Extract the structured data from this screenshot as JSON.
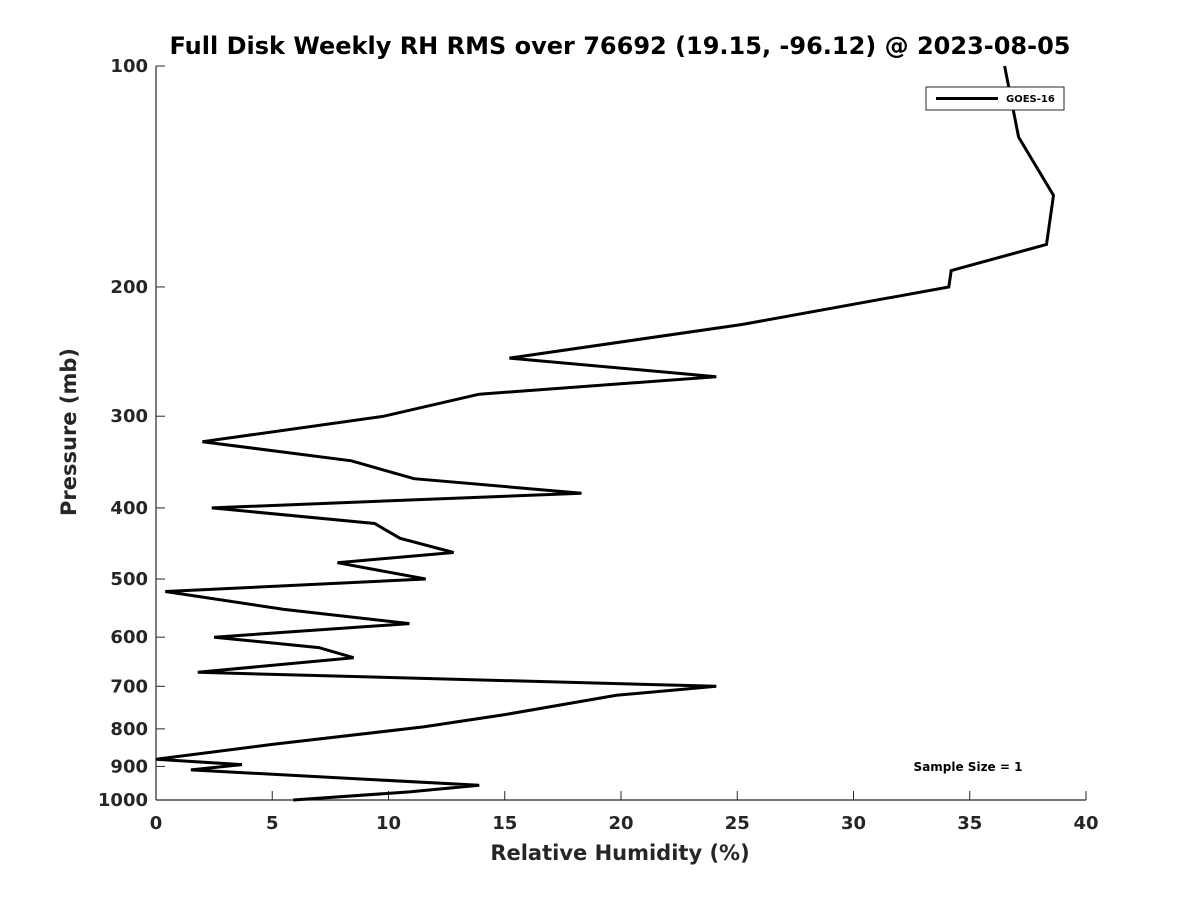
{
  "chart_data": {
    "type": "line",
    "title": "Full Disk Weekly RH RMS over 76692 (19.15, -96.12) @ 2023-08-05",
    "xlabel": "Relative Humidity (%)",
    "ylabel": "Pressure (mb)",
    "xlim": [
      0,
      40
    ],
    "ylim": [
      100,
      1000
    ],
    "y_scale": "log",
    "y_reversed": true,
    "grid": false,
    "legend_position": "top-right",
    "x_ticks": [
      0,
      5,
      10,
      15,
      20,
      25,
      30,
      35,
      40
    ],
    "x_tick_labels": [
      "0",
      "5",
      "10",
      "15",
      "20",
      "25",
      "30",
      "35",
      "40"
    ],
    "y_ticks": [
      100,
      200,
      300,
      400,
      500,
      600,
      700,
      800,
      900,
      1000
    ],
    "y_tick_labels": [
      "100",
      "200",
      "300",
      "400",
      "500",
      "600",
      "700",
      "800",
      "900",
      "1000"
    ],
    "series": [
      {
        "name": "GOES-16",
        "color": "#000000",
        "points": [
          [
            36.5,
            100
          ],
          [
            37.1,
            125
          ],
          [
            38.6,
            150
          ],
          [
            38.3,
            175
          ],
          [
            34.2,
            190
          ],
          [
            34.1,
            200
          ],
          [
            25.2,
            225
          ],
          [
            15.2,
            250
          ],
          [
            24.1,
            265
          ],
          [
            13.9,
            280
          ],
          [
            9.8,
            300
          ],
          [
            2.0,
            325
          ],
          [
            8.4,
            345
          ],
          [
            11.1,
            365
          ],
          [
            18.3,
            382
          ],
          [
            2.4,
            400
          ],
          [
            9.4,
            420
          ],
          [
            10.5,
            440
          ],
          [
            12.8,
            460
          ],
          [
            7.8,
            475
          ],
          [
            11.6,
            500
          ],
          [
            0.4,
            520
          ],
          [
            5.5,
            550
          ],
          [
            10.9,
            575
          ],
          [
            2.5,
            600
          ],
          [
            7.0,
            620
          ],
          [
            8.5,
            640
          ],
          [
            1.8,
            670
          ],
          [
            24.1,
            700
          ],
          [
            19.8,
            720
          ],
          [
            15.0,
            765
          ],
          [
            11.5,
            795
          ],
          [
            5.0,
            840
          ],
          [
            0.0,
            880
          ],
          [
            3.7,
            895
          ],
          [
            1.5,
            910
          ],
          [
            8.5,
            935
          ],
          [
            13.9,
            955
          ],
          [
            10.9,
            975
          ],
          [
            5.9,
            1000
          ]
        ]
      }
    ],
    "annotations": [
      "Sample Size = 1"
    ]
  }
}
